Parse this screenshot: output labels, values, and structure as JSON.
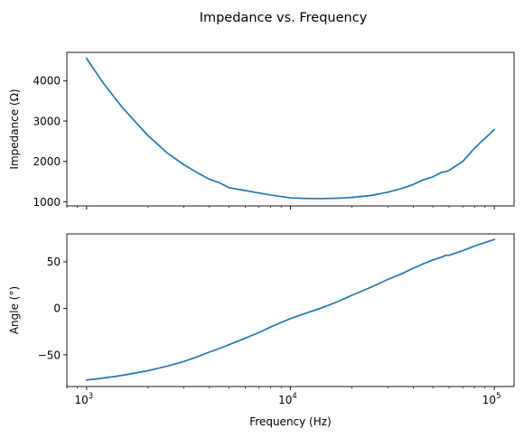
{
  "chart_data": {
    "type": "line",
    "title": "Impedance vs. Frequency",
    "xlabel": "Frequency (Hz)",
    "x_scale": "log",
    "xlim": [
      800,
      125000
    ],
    "x_ticks": [
      {
        "value": 1000,
        "base": "10",
        "exp": "3"
      },
      {
        "value": 10000,
        "base": "10",
        "exp": "4"
      },
      {
        "value": 100000,
        "base": "10",
        "exp": "5"
      }
    ],
    "x": [
      1000,
      1200,
      1500,
      2000,
      2500,
      3000,
      3500,
      4000,
      4500,
      5000,
      6000,
      7000,
      8000,
      10000,
      12000,
      14000,
      17000,
      20000,
      25000,
      30000,
      35000,
      40000,
      45000,
      50000,
      55000,
      58000,
      60000,
      70000,
      80000,
      100000
    ],
    "panels": [
      {
        "ylabel": "Impedance (Ω)",
        "ylim": [
          900,
          4700
        ],
        "yticks": [
          1000,
          2000,
          3000,
          4000
        ],
        "grid": false,
        "color": "#1f77b4",
        "values": [
          4550,
          3960,
          3330,
          2640,
          2200,
          1920,
          1720,
          1560,
          1470,
          1350,
          1280,
          1220,
          1170,
          1100,
          1085,
          1080,
          1090,
          1110,
          1160,
          1240,
          1330,
          1430,
          1550,
          1620,
          1730,
          1750,
          1780,
          2000,
          2330,
          2790
        ]
      },
      {
        "ylabel": "Angle (°)",
        "ylim": [
          -84,
          80
        ],
        "yticks": [
          -50,
          0,
          50
        ],
        "tick_labels": [
          "−50",
          "0",
          "50"
        ],
        "grid": false,
        "color": "#1f77b4",
        "values": [
          -77,
          -75,
          -72,
          -67,
          -62,
          -57,
          -52,
          -47,
          -43,
          -39,
          -32,
          -26,
          -20,
          -11,
          -5,
          0,
          7,
          14,
          23,
          31,
          37,
          43,
          48,
          52,
          55,
          57,
          57,
          62,
          67,
          74
        ]
      }
    ]
  }
}
